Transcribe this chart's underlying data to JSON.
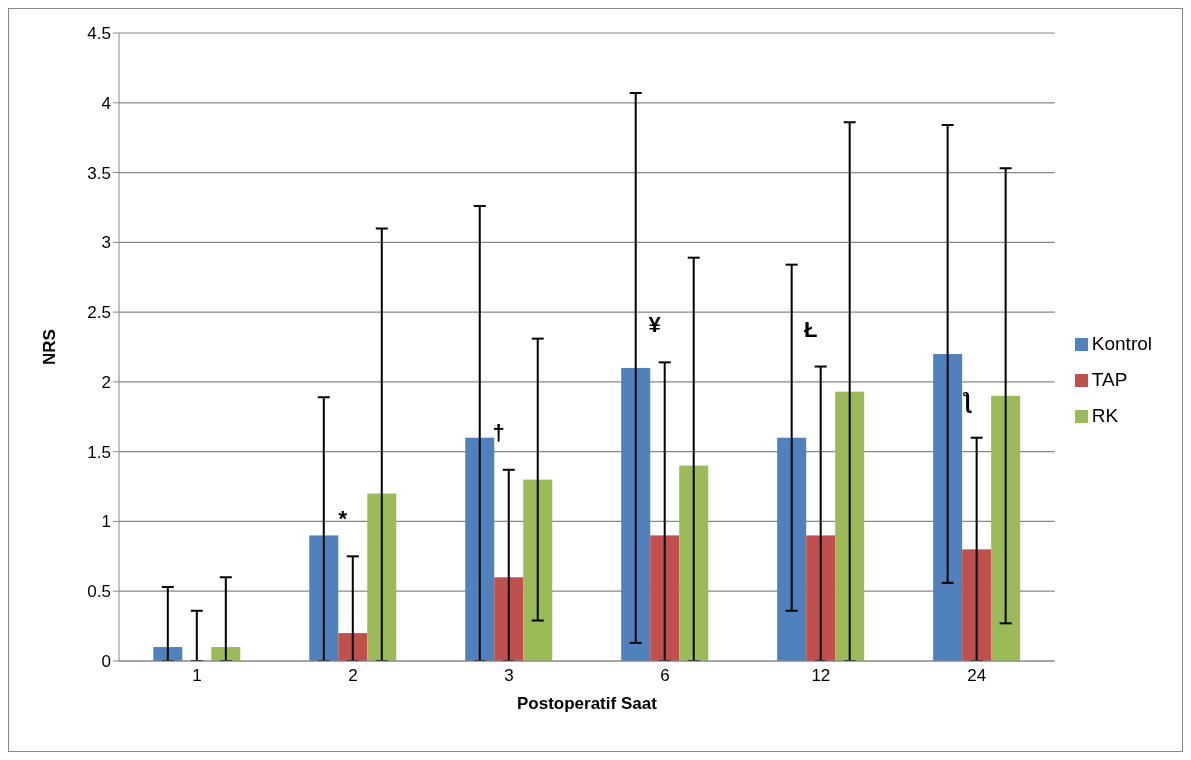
{
  "chart_data": {
    "type": "bar",
    "xlabel": "Postoperatif Saat",
    "ylabel": "NRS",
    "categories": [
      "1",
      "2",
      "3",
      "6",
      "12",
      "24"
    ],
    "series": [
      {
        "name": "Kontrol",
        "color": "#4f81bd",
        "values": [
          0.1,
          0.9,
          1.6,
          2.1,
          1.6,
          2.2
        ],
        "errors": [
          [
            0,
            0.53
          ],
          [
            0,
            1.89
          ],
          [
            0,
            3.26
          ],
          [
            0.13,
            4.07
          ],
          [
            0.36,
            2.84
          ],
          [
            0.56,
            3.84
          ]
        ]
      },
      {
        "name": "TAP",
        "color": "#c0504d",
        "values": [
          0,
          0.2,
          0.6,
          0.9,
          0.9,
          0.8
        ],
        "errors": [
          [
            0,
            0.36
          ],
          [
            0,
            0.75
          ],
          [
            0,
            1.37
          ],
          [
            0,
            2.14
          ],
          [
            0,
            2.11
          ],
          [
            0,
            1.6
          ]
        ]
      },
      {
        "name": "RK",
        "color": "#9bbb59",
        "values": [
          0.1,
          1.2,
          1.3,
          1.4,
          1.93,
          1.9
        ],
        "errors": [
          [
            0,
            0.6
          ],
          [
            0,
            3.1
          ],
          [
            0.29,
            2.31
          ],
          [
            0,
            2.89
          ],
          [
            0,
            3.86
          ],
          [
            0.27,
            3.53
          ]
        ]
      }
    ],
    "ylim": [
      0,
      4.5
    ],
    "yticks": [
      0,
      0.5,
      1,
      1.5,
      2,
      2.5,
      3,
      3.5,
      4,
      4.5
    ],
    "grid": "y",
    "legend": "right",
    "annotations": [
      "*",
      "†",
      "¥",
      "Ł",
      "ƪ"
    ]
  }
}
